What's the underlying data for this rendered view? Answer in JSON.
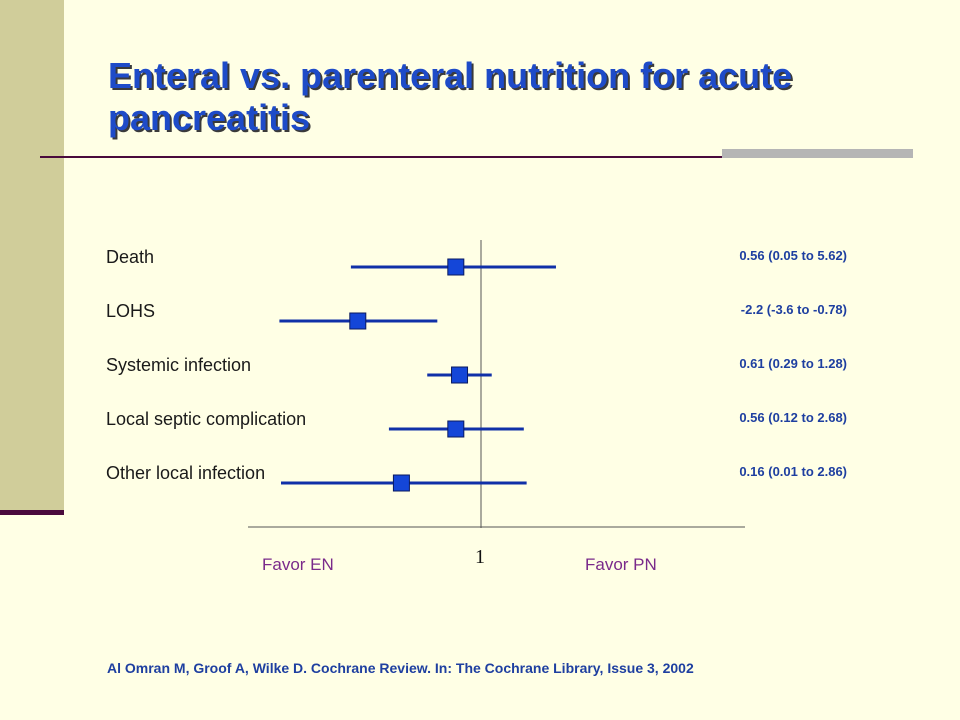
{
  "slide": {
    "title": "Enteral vs. parenteral nutrition for acute pancreatitis",
    "citation": "Al Omran M, Groof A, Wilke D. Cochrane Review. In: The Cochrane Library, Issue 3, 2002"
  },
  "colors": {
    "background": "#FFFFE5",
    "sidebar": "#D0CD9A",
    "accent_line": "#4A0A3C",
    "title": "#1E4BC8",
    "marker": "#1446D8",
    "ci_line": "#1030A8",
    "favor_text": "#7A2A8A"
  },
  "chart_data": {
    "type": "forest",
    "reference_tick_label": "1",
    "favor_left": "Favor EN",
    "favor_right": "Favor PN",
    "rows": [
      {
        "label": "Death",
        "estimate_text": "0.56 (0.05 to 5.62)",
        "point": 0.56,
        "lower": 0.05,
        "upper": 5.62
      },
      {
        "label": "LOHS",
        "estimate_text": "-2.2 (-3.6 to -0.78)",
        "point": -2.2,
        "lower": -3.6,
        "upper": -0.78
      },
      {
        "label": "Systemic infection",
        "estimate_text": "0.61 (0.29 to 1.28)",
        "point": 0.61,
        "lower": 0.29,
        "upper": 1.28
      },
      {
        "label": "Local septic complication",
        "estimate_text": "0.56 (0.12 to 2.68)",
        "point": 0.56,
        "lower": 0.12,
        "upper": 2.68
      },
      {
        "label": "Other local infection",
        "estimate_text": "0.16 (0.01 to 2.86)",
        "point": 0.16,
        "lower": 0.01,
        "upper": 2.86
      }
    ]
  }
}
